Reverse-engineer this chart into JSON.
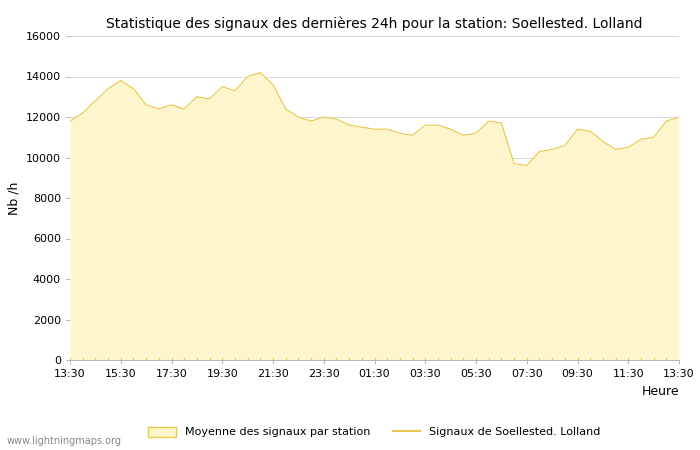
{
  "title": "Statistique des signaux des dernières 24h pour la station: Soellested. Lolland",
  "xlabel": "Heure",
  "ylabel": "Nb /h",
  "ylim": [
    0,
    16000
  ],
  "yticks": [
    0,
    2000,
    4000,
    6000,
    8000,
    10000,
    12000,
    14000,
    16000
  ],
  "xtick_labels": [
    "13:30",
    "15:30",
    "17:30",
    "19:30",
    "21:30",
    "23:30",
    "01:30",
    "03:30",
    "05:30",
    "07:30",
    "09:30",
    "11:30",
    "13:30"
  ],
  "fill_color": "#FFF5CC",
  "fill_edge_color": "#E8C84A",
  "line_color": "#C8A000",
  "background_color": "#FFFFFF",
  "grid_color": "#CCCCCC",
  "watermark": "www.lightningmaps.org",
  "legend_fill_label": "Moyenne des signaux par station",
  "legend_line_label": "Signaux de Soellested. Lolland",
  "x_values": [
    0,
    0.5,
    1,
    1.5,
    2,
    2.5,
    3,
    3.5,
    4,
    4.5,
    5,
    5.5,
    6,
    6.5,
    7,
    7.5,
    8,
    8.5,
    9,
    9.5,
    10,
    10.5,
    11,
    11.5,
    12,
    12.5,
    13,
    13.5,
    14,
    14.5,
    15,
    15.5,
    16,
    16.5,
    17,
    17.5,
    18,
    18.5,
    19,
    19.5,
    20,
    20.5,
    21,
    21.5,
    22,
    22.5,
    23,
    23.5,
    24
  ],
  "y_values": [
    11800,
    12200,
    12800,
    13400,
    13800,
    13400,
    12600,
    12400,
    12600,
    12400,
    13000,
    12900,
    13500,
    13300,
    14000,
    14200,
    13600,
    12400,
    12000,
    11800,
    12000,
    11900,
    11600,
    11500,
    11400,
    11400,
    11200,
    11100,
    11600,
    11600,
    11400,
    11100,
    11200,
    11800,
    11700,
    9700,
    9600,
    10300,
    10400,
    10600,
    11400,
    11300,
    10800,
    10400,
    10500,
    10900,
    11000,
    11800,
    12000
  ],
  "title_fontsize": 10,
  "tick_fontsize": 8,
  "label_fontsize": 9,
  "watermark_fontsize": 7,
  "legend_fontsize": 8
}
